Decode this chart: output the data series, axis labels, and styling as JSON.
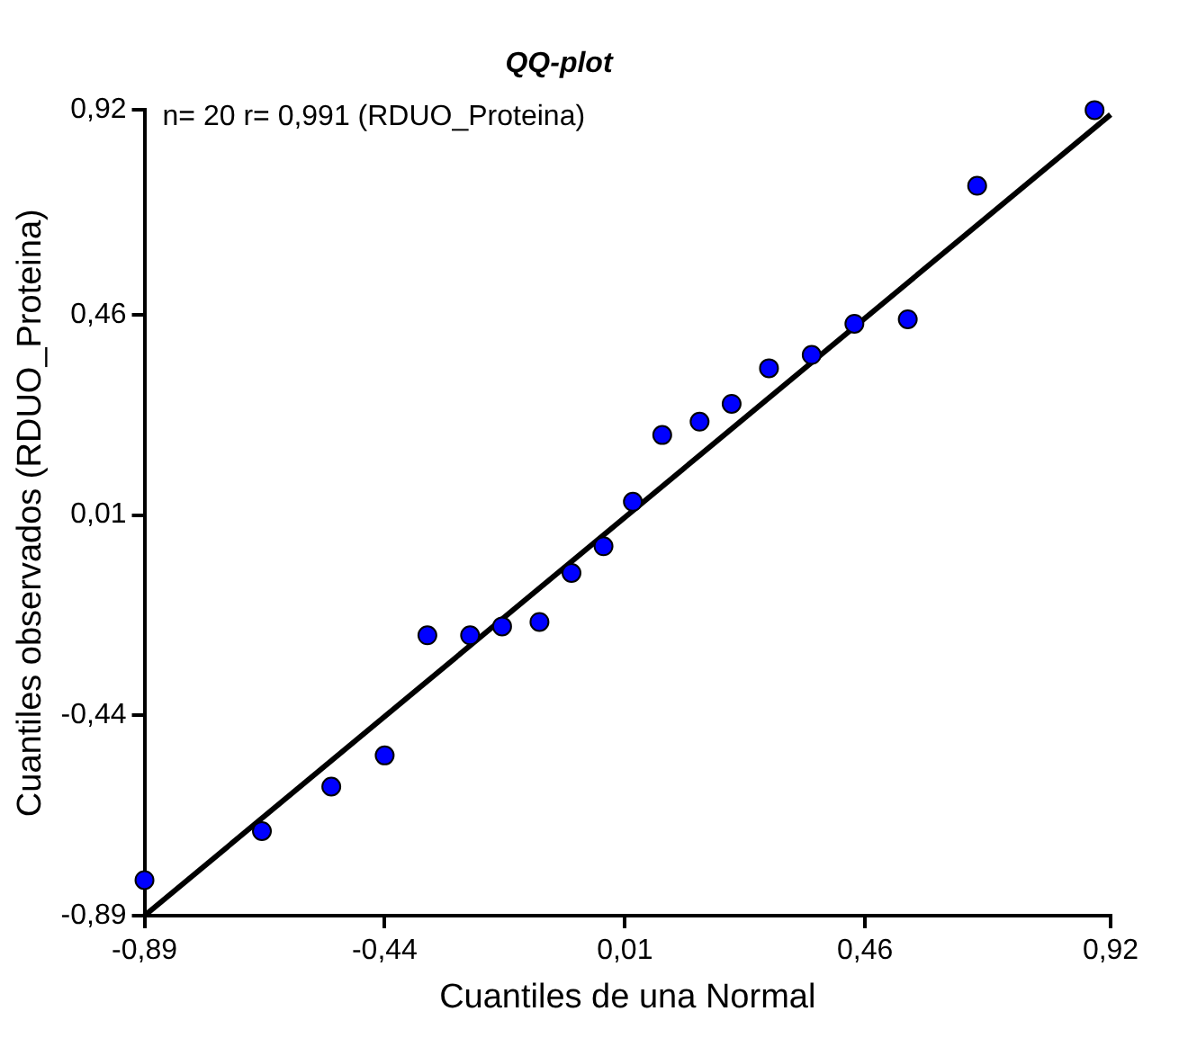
{
  "chart_data": {
    "type": "scatter",
    "title": "QQ-plot",
    "xlabel": "Cuantiles de una Normal",
    "ylabel": "Cuantiles observados (RDUO_Proteina)",
    "annotations": [
      "n= 20 r= 0,991 (RDUO_Proteina)"
    ],
    "xlim": [
      -0.89,
      0.92
    ],
    "ylim": [
      -0.89,
      0.92
    ],
    "xticks": [
      {
        "value": -0.89,
        "label": "-0,89"
      },
      {
        "value": -0.44,
        "label": "-0,44"
      },
      {
        "value": 0.01,
        "label": "0,01"
      },
      {
        "value": 0.46,
        "label": "0,46"
      },
      {
        "value": 0.92,
        "label": "0,92"
      }
    ],
    "yticks": [
      {
        "value": -0.89,
        "label": "-0,89"
      },
      {
        "value": -0.44,
        "label": "-0,44"
      },
      {
        "value": 0.01,
        "label": "0,01"
      },
      {
        "value": 0.46,
        "label": "0,46"
      },
      {
        "value": 0.92,
        "label": "0,92"
      }
    ],
    "grid": false,
    "legend": false,
    "marker": "circle",
    "series": [
      {
        "type": "scatter",
        "color": "#0000ff",
        "x": [
          -0.89,
          -0.67,
          -0.54,
          -0.44,
          -0.36,
          -0.28,
          -0.22,
          -0.15,
          -0.09,
          -0.03,
          0.025,
          0.08,
          0.15,
          0.21,
          0.28,
          0.36,
          0.44,
          0.54,
          0.67,
          0.89
        ],
        "values": [
          -0.81,
          -0.7,
          -0.6,
          -0.53,
          -0.26,
          -0.26,
          -0.24,
          -0.23,
          -0.12,
          -0.06,
          0.04,
          0.19,
          0.22,
          0.26,
          0.34,
          0.37,
          0.44,
          0.45,
          0.75,
          0.92
        ]
      },
      {
        "type": "line",
        "color": "#000000",
        "x": [
          -0.89,
          0.92
        ],
        "values": [
          -0.89,
          0.91
        ],
        "marker": "none"
      }
    ]
  }
}
